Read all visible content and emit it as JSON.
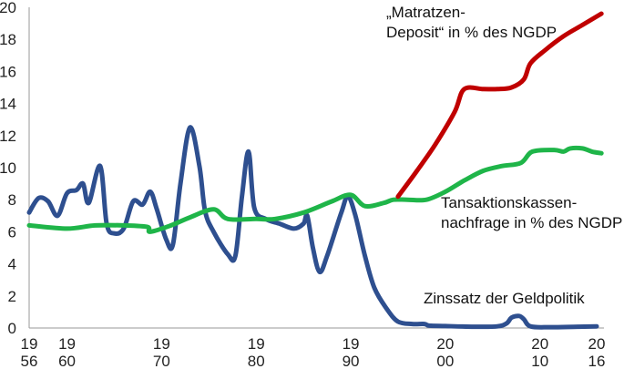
{
  "chart_data": {
    "type": "line",
    "ylim": [
      0,
      20
    ],
    "y_ticks": [
      "0",
      "2",
      "4",
      "6",
      "8",
      "10",
      "12",
      "14",
      "16",
      "18",
      "20"
    ],
    "xlim": [
      1956,
      2016
    ],
    "x_ticks": [
      {
        "year": 1956,
        "top": "19",
        "bottom": "56"
      },
      {
        "year": 1960,
        "top": "19",
        "bottom": "60"
      },
      {
        "year": 1970,
        "top": "19",
        "bottom": "70"
      },
      {
        "year": 1980,
        "top": "19",
        "bottom": "80"
      },
      {
        "year": 1990,
        "top": "19",
        "bottom": "90"
      },
      {
        "year": 2000,
        "top": "20",
        "bottom": "00"
      },
      {
        "year": 2010,
        "top": "20",
        "bottom": "10"
      },
      {
        "year": 2016,
        "top": "20",
        "bottom": "16"
      }
    ],
    "grid": false,
    "series": [
      {
        "name": "Zinssatz der Geldpolitik",
        "color": "#2e4f8f",
        "points": [
          [
            1956,
            7.2
          ],
          [
            1957,
            8.1
          ],
          [
            1958,
            7.9
          ],
          [
            1959,
            7.0
          ],
          [
            1960,
            8.4
          ],
          [
            1961,
            8.6
          ],
          [
            1961.7,
            9.0
          ],
          [
            1962.3,
            7.8
          ],
          [
            1963.5,
            10.1
          ],
          [
            1964.2,
            6.5
          ],
          [
            1965,
            5.9
          ],
          [
            1966,
            6.2
          ],
          [
            1967,
            7.9
          ],
          [
            1968,
            7.7
          ],
          [
            1968.8,
            8.5
          ],
          [
            1969.5,
            7.4
          ],
          [
            1970.5,
            5.5
          ],
          [
            1971.2,
            5.2
          ],
          [
            1972,
            9.0
          ],
          [
            1973,
            12.5
          ],
          [
            1974,
            10.1
          ],
          [
            1974.6,
            7.3
          ],
          [
            1975.5,
            6.0
          ],
          [
            1977,
            4.6
          ],
          [
            1977.8,
            4.5
          ],
          [
            1978.5,
            8.2
          ],
          [
            1979.2,
            11.0
          ],
          [
            1979.8,
            7.5
          ],
          [
            1981,
            6.8
          ],
          [
            1982.5,
            6.5
          ],
          [
            1984,
            6.2
          ],
          [
            1985,
            6.5
          ],
          [
            1985.4,
            7.0
          ],
          [
            1986,
            5.0
          ],
          [
            1986.7,
            3.5
          ],
          [
            1987.5,
            4.5
          ],
          [
            1989,
            7.2
          ],
          [
            1989.7,
            8.2
          ],
          [
            1990.5,
            7.0
          ],
          [
            1991.5,
            4.5
          ],
          [
            1992.5,
            2.5
          ],
          [
            1993.8,
            1.2
          ],
          [
            1995,
            0.4
          ],
          [
            1996.5,
            0.25
          ],
          [
            1997.8,
            0.25
          ],
          [
            1998.3,
            0.15
          ],
          [
            2000,
            0.12
          ],
          [
            2003,
            0.08
          ],
          [
            2005.5,
            0.1
          ],
          [
            2006.5,
            0.3
          ],
          [
            2007,
            0.65
          ],
          [
            2007.8,
            0.75
          ],
          [
            2008.3,
            0.55
          ],
          [
            2009,
            0.1
          ],
          [
            2011,
            0.05
          ],
          [
            2014,
            0.08
          ],
          [
            2016,
            0.1
          ]
        ]
      },
      {
        "name": "Tansaktionskassen-nachfrage in % des NGDP",
        "color": "#1fb549",
        "points": [
          [
            1956,
            6.4
          ],
          [
            1960,
            6.2
          ],
          [
            1963,
            6.4
          ],
          [
            1966,
            6.4
          ],
          [
            1968.5,
            6.3
          ],
          [
            1968.8,
            6.0
          ],
          [
            1971,
            6.4
          ],
          [
            1973,
            6.9
          ],
          [
            1975.5,
            7.4
          ],
          [
            1977,
            6.8
          ],
          [
            1980,
            6.8
          ],
          [
            1982,
            6.8
          ],
          [
            1985,
            7.2
          ],
          [
            1988,
            7.9
          ],
          [
            1990,
            8.3
          ],
          [
            1991.5,
            7.6
          ],
          [
            1993.5,
            7.8
          ],
          [
            1994.5,
            8.0
          ],
          [
            1996,
            8.0
          ],
          [
            1998,
            8.0
          ],
          [
            2000,
            8.5
          ],
          [
            2002,
            9.2
          ],
          [
            2004,
            9.8
          ],
          [
            2006,
            10.1
          ],
          [
            2008,
            10.3
          ],
          [
            2009.2,
            11.0
          ],
          [
            2011.5,
            11.1
          ],
          [
            2012.5,
            11.0
          ],
          [
            2013.2,
            11.2
          ],
          [
            2014.5,
            11.2
          ],
          [
            2015.5,
            11.0
          ],
          [
            2016.5,
            10.9
          ]
        ]
      },
      {
        "name": "„Matratzen-Deposit“ in % des NGDP",
        "color": "#c00000",
        "points": [
          [
            1995,
            8.2
          ],
          [
            1997,
            9.8
          ],
          [
            1999,
            11.5
          ],
          [
            2001,
            13.5
          ],
          [
            2002,
            14.9
          ],
          [
            2004,
            14.9
          ],
          [
            2005.5,
            14.9
          ],
          [
            2007,
            15.0
          ],
          [
            2008.3,
            15.5
          ],
          [
            2009,
            16.5
          ],
          [
            2010.5,
            17.3
          ],
          [
            2012.5,
            18.2
          ],
          [
            2014.5,
            18.9
          ],
          [
            2016.5,
            19.6
          ]
        ]
      }
    ]
  },
  "annotations": {
    "deposit_line1": "„Matratzen-",
    "deposit_line2": "Deposit“ in % des NGDP",
    "demand_line1": "Tansaktionskassen-",
    "demand_line2": "nachfrage in % des NGDP",
    "rate_label": "Zinssatz der Geldpolitik"
  }
}
